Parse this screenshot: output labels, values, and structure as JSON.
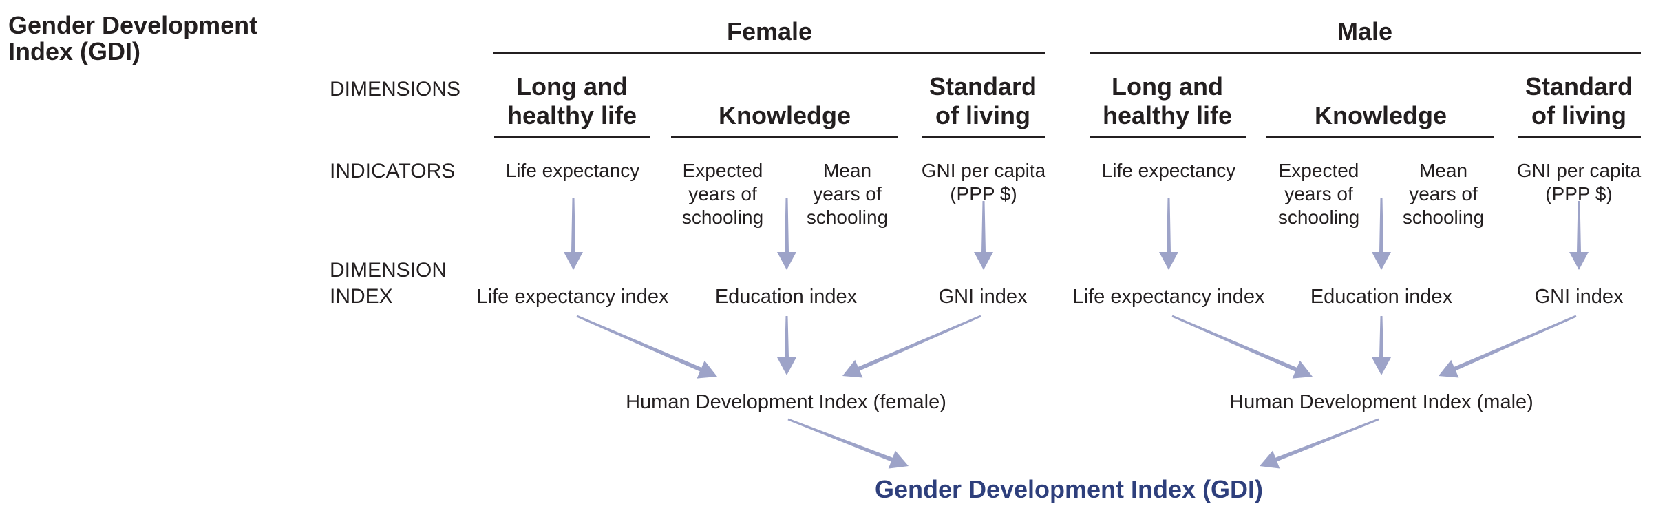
{
  "title": "Gender Development Index (GDI)",
  "row_labels": {
    "dimensions": "DIMENSIONS",
    "indicators": "INDICATORS",
    "dimension_index_line1": "DIMENSION",
    "dimension_index_line2": "INDEX"
  },
  "female": {
    "heading": "Female",
    "dim_health_1": "Long and",
    "dim_health_2": "healthy life",
    "dim_knowledge": "Knowledge",
    "dim_living_1": "Standard",
    "dim_living_2": "of living",
    "ind_life": "Life expectancy",
    "ind_expected_1": "Expected",
    "ind_expected_2": "years of",
    "ind_expected_3": "schooling",
    "ind_mean_1": "Mean",
    "ind_mean_2": "years of",
    "ind_mean_3": "schooling",
    "ind_gni_1": "GNI per capita",
    "ind_gni_2": "(PPP $)",
    "idx_life": "Life expectancy index",
    "idx_edu": "Education index",
    "idx_gni": "GNI index",
    "hdi": "Human Development Index (female)"
  },
  "male": {
    "heading": "Male",
    "dim_health_1": "Long and",
    "dim_health_2": "healthy life",
    "dim_knowledge": "Knowledge",
    "dim_living_1": "Standard",
    "dim_living_2": "of living",
    "ind_life": "Life expectancy",
    "ind_expected_1": "Expected",
    "ind_expected_2": "years of",
    "ind_expected_3": "schooling",
    "ind_mean_1": "Mean",
    "ind_mean_2": "years of",
    "ind_mean_3": "schooling",
    "ind_gni_1": "GNI per capita",
    "ind_gni_2": "(PPP $)",
    "idx_life": "Life expectancy index",
    "idx_edu": "Education index",
    "idx_gni": "GNI index",
    "hdi": "Human Development Index (male)"
  },
  "gdi_label": "Gender Development Index (GDI)",
  "colors": {
    "text": "#231f20",
    "arrow": "#9da3c8",
    "gdi_text": "#2e3f7c",
    "rule": "#231f20"
  }
}
